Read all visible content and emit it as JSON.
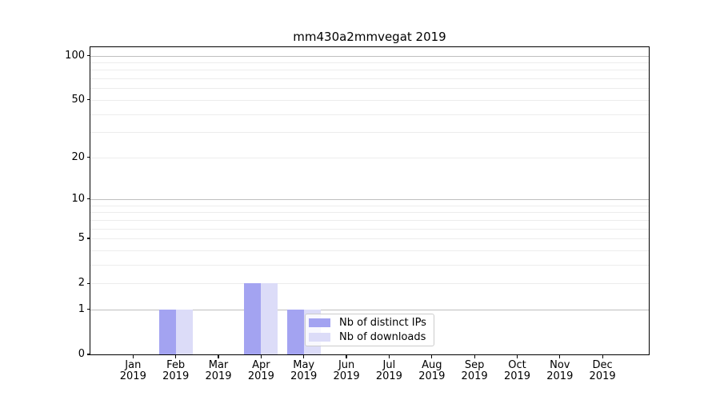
{
  "figure": {
    "background": "#ffffff",
    "text_color": "#000000",
    "axis_color": "#000000"
  },
  "chart_data": {
    "type": "bar",
    "title": "mm430a2mmvegat 2019",
    "xlabel": "",
    "ylabel": "",
    "categories": [
      "Jan",
      "Feb",
      "Mar",
      "Apr",
      "May",
      "Jun",
      "Jul",
      "Aug",
      "Sep",
      "Oct",
      "Nov",
      "Dec"
    ],
    "xtick_year": "2019",
    "series": [
      {
        "name": "Nb of distinct IPs",
        "color": "#a3a3f1",
        "values": [
          0,
          1,
          0,
          2,
          1,
          0,
          0,
          0,
          0,
          0,
          0,
          0
        ]
      },
      {
        "name": "Nb of downloads",
        "color": "#dcdcf8",
        "values": [
          0,
          1,
          0,
          2,
          1,
          0,
          0,
          0,
          0,
          0,
          0,
          0
        ]
      }
    ],
    "yscale": "log1p",
    "ylim": [
      0,
      114
    ],
    "yticks": [
      0,
      1,
      2,
      5,
      10,
      20,
      50,
      100
    ],
    "grid": {
      "major_values": [
        1,
        10,
        100
      ],
      "minor_values": [
        2,
        3,
        4,
        5,
        6,
        7,
        8,
        9,
        20,
        30,
        40,
        50,
        60,
        70,
        80,
        90
      ],
      "major_color": "#bfbfbf",
      "minor_color": "#ececec"
    },
    "legend": {
      "position": "lower right inside",
      "border_color": "#cccccc",
      "background": "rgba(255,255,255,0.8)"
    }
  }
}
